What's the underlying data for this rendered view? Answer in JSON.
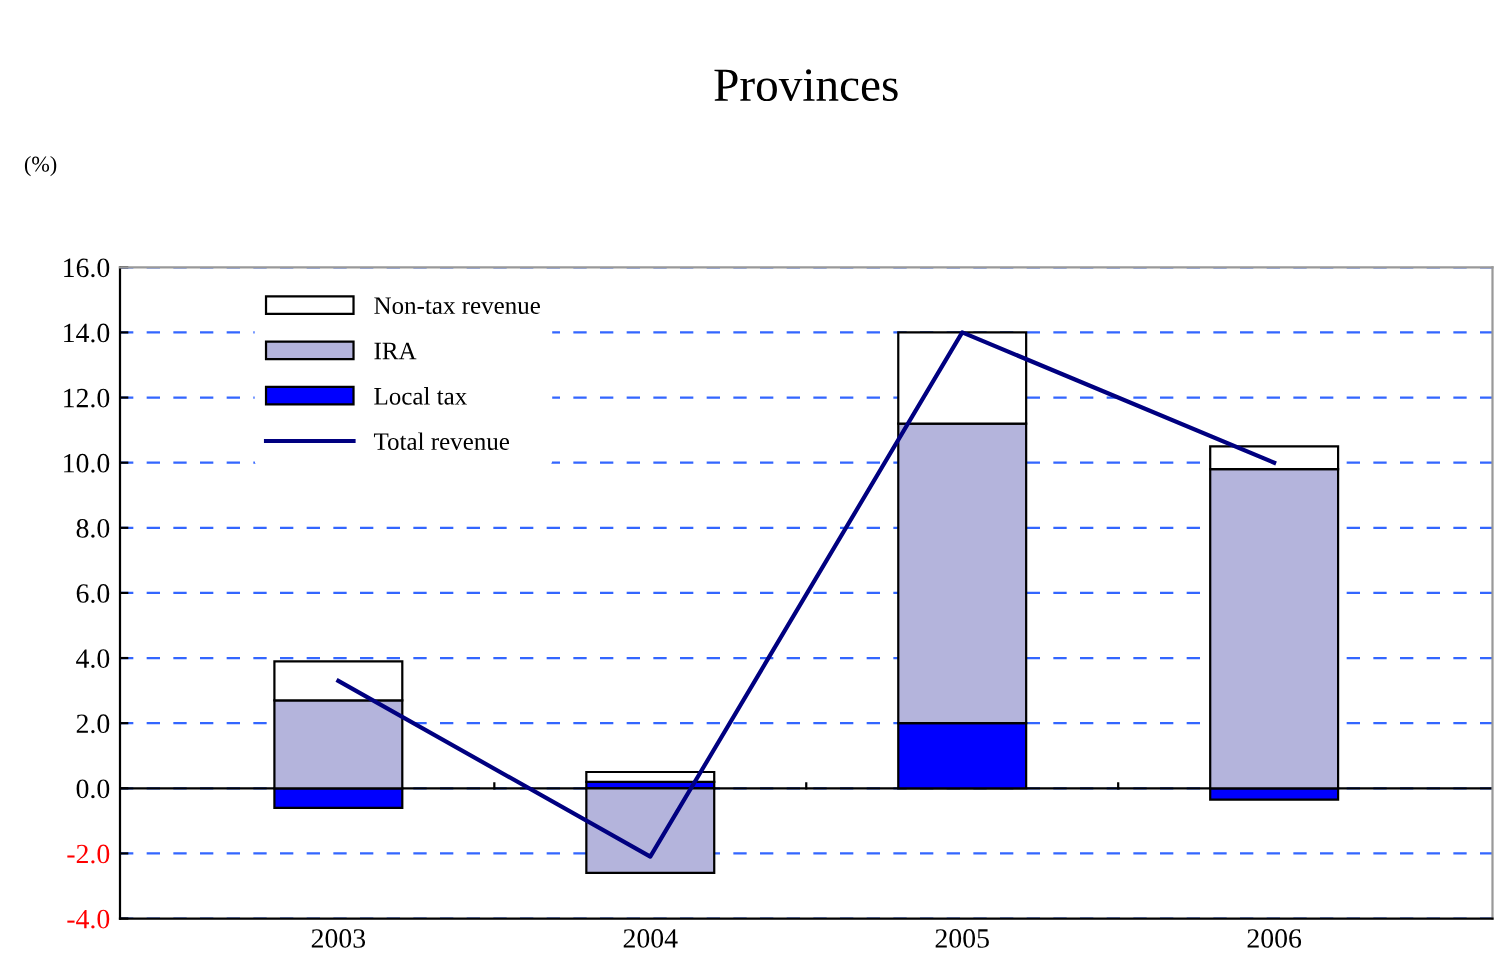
{
  "chart_data": {
    "type": "bar",
    "title": "Provinces",
    "ylabel": "(%)",
    "stacked": true,
    "categories": [
      "2003",
      "2004",
      "2005",
      "2006"
    ],
    "series": [
      {
        "name": "Local tax",
        "color": "#0000ff",
        "values": [
          -0.6,
          0.2,
          2.0,
          -0.35
        ]
      },
      {
        "name": "IRA",
        "color": "#b4b4dc",
        "values": [
          2.7,
          -2.6,
          9.2,
          9.8
        ]
      },
      {
        "name": "Non-tax revenue",
        "color": "#ffffff",
        "values": [
          1.2,
          0.3,
          2.8,
          0.7
        ]
      },
      {
        "name": "Total revenue",
        "type": "line",
        "color": "#000080",
        "values": [
          3.3,
          -2.1,
          14.0,
          10.0
        ]
      }
    ],
    "ylim": [
      -4,
      16
    ],
    "yticks": [
      {
        "value": -4,
        "label": "-4.0"
      },
      {
        "value": -2,
        "label": "-2.0"
      },
      {
        "value": 0,
        "label": "0.0"
      },
      {
        "value": 2,
        "label": "2.0"
      },
      {
        "value": 4,
        "label": "4.0"
      },
      {
        "value": 6,
        "label": "6.0"
      },
      {
        "value": 8,
        "label": "8.0"
      },
      {
        "value": 10,
        "label": "10.0"
      },
      {
        "value": 12,
        "label": "12.0"
      },
      {
        "value": 14,
        "label": "14.0"
      },
      {
        "value": 16,
        "label": "16.0"
      }
    ],
    "grid": "y",
    "legend": "top left"
  }
}
